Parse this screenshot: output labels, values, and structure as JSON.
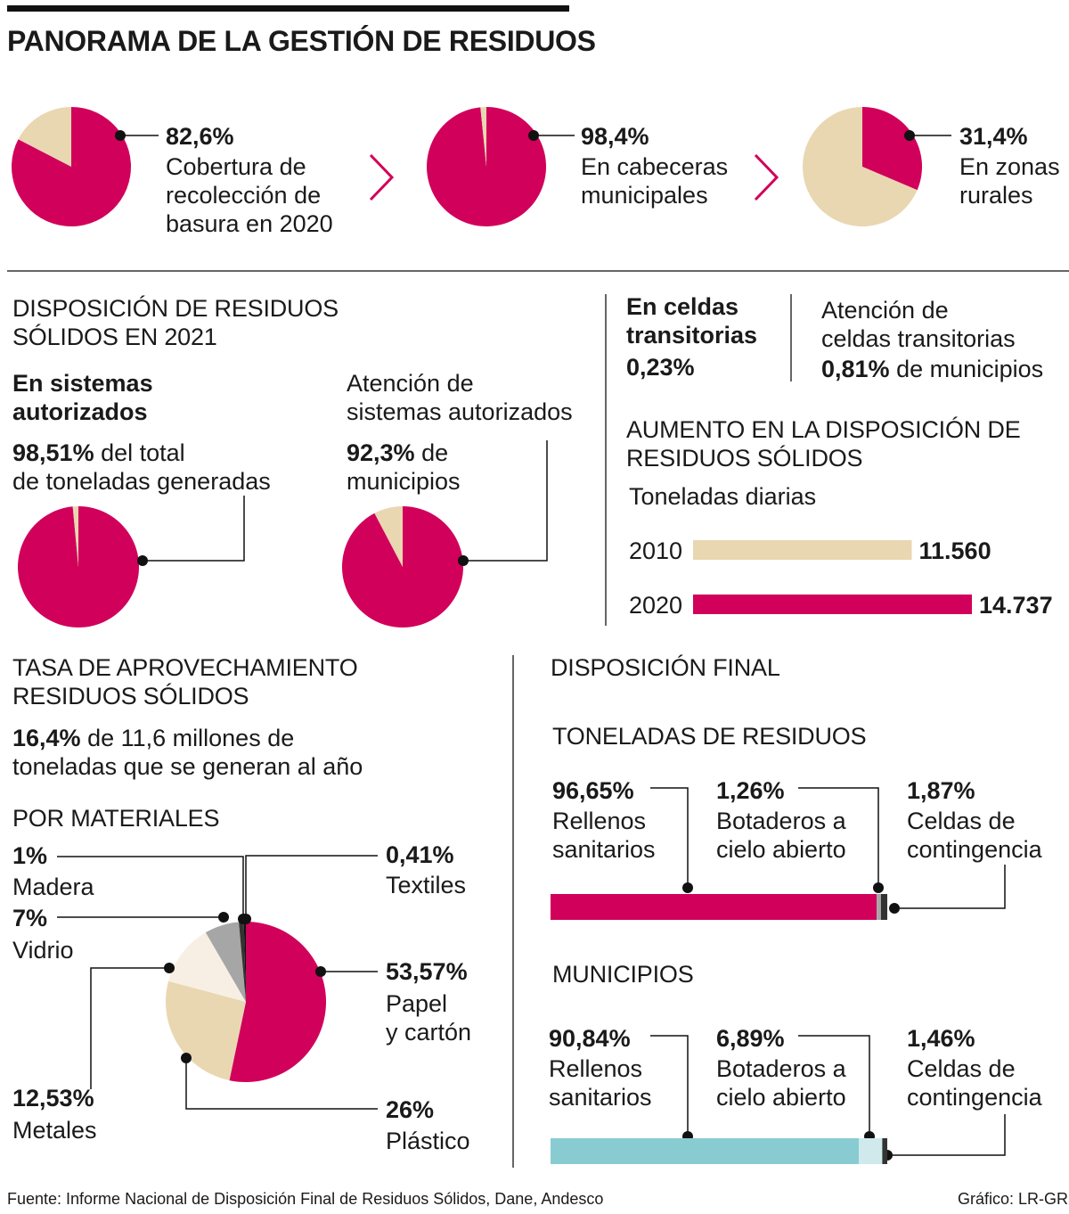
{
  "title": "PANORAMA DE LA GESTIÓN DE RESIDUOS",
  "colors": {
    "magenta": "#d1005a",
    "beige": "#e9d7b1",
    "gray": "#a6a6a6",
    "cream": "#f7efe3",
    "dark": "#333333",
    "teal": "#88ccd2",
    "lightteal": "#cfe9ec"
  },
  "coverage": [
    {
      "value": "82,6%",
      "lines": [
        "Cobertura de",
        "recolección de",
        "basura en 2020"
      ],
      "pct": 82.6
    },
    {
      "value": "98,4%",
      "lines": [
        "En cabeceras",
        "municipales"
      ],
      "pct": 98.4
    },
    {
      "value": "31,4%",
      "lines": [
        "En zonas",
        "rurales"
      ],
      "pct": 31.4
    }
  ],
  "disposicion": {
    "heading": [
      "DISPOSICIÓN DE RESIDUOS",
      "SÓLIDOS EN 2021"
    ],
    "autorizados": {
      "label": [
        "En sistemas",
        "autorizados"
      ],
      "value": "98,51%",
      "rest1": "del total",
      "rest2": "de toneladas generadas",
      "pct": 98.51
    },
    "atencion": {
      "label": [
        "Atención de",
        "sistemas autorizados"
      ],
      "value": "92,3%",
      "rest1": "de",
      "rest2": "municipios",
      "pct": 92.3
    },
    "celdas": {
      "label": [
        "En celdas",
        "transitorias"
      ],
      "value": "0,23%"
    },
    "atencion_celdas": {
      "label": [
        "Atención de",
        "celdas transitorias"
      ],
      "value": "0,81%",
      "rest": "de municipios"
    }
  },
  "aumento": {
    "heading": [
      "AUMENTO EN LA DISPOSICIÓN DE",
      "RESIDUOS SÓLIDOS"
    ],
    "subtitle": "Toneladas diarias"
  },
  "tasa": {
    "heading": [
      "TASA DE APROVECHAMIENTO",
      "RESIDUOS SÓLIDOS"
    ],
    "value": "16,4%",
    "rest1": "de 11,6 millones de",
    "rest2": "toneladas que se generan al año",
    "por_materiales": "POR MATERIALES"
  },
  "final": {
    "heading": "DISPOSICIÓN FINAL",
    "toneladas": {
      "heading": "TONELADAS DE RESIDUOS",
      "items": [
        {
          "value": "96,65%",
          "lines": [
            "Rellenos",
            "sanitarios"
          ]
        },
        {
          "value": "1,26%",
          "lines": [
            "Botaderos a",
            "cielo abierto"
          ]
        },
        {
          "value": "1,87%",
          "lines": [
            "Celdas de",
            "contingencia"
          ]
        }
      ]
    },
    "municipios": {
      "heading": "MUNICIPIOS",
      "items": [
        {
          "value": "90,84%",
          "lines": [
            "Rellenos",
            "sanitarios"
          ]
        },
        {
          "value": "6,89%",
          "lines": [
            "Botaderos a",
            "cielo abierto"
          ]
        },
        {
          "value": "1,46%",
          "lines": [
            "Celdas de",
            "contingencia"
          ]
        }
      ]
    }
  },
  "footer": {
    "source": "Fuente: Informe Nacional de Disposición Final de Residuos Sólidos, Dane, Andesco",
    "credit": "Gráfico: LR-GR"
  },
  "chart_data": [
    {
      "type": "pie",
      "series": [
        {
          "name": "Cobertura de recolección de basura en 2020",
          "values": [
            82.6,
            17.4
          ]
        }
      ]
    },
    {
      "type": "pie",
      "series": [
        {
          "name": "En cabeceras municipales",
          "values": [
            98.4,
            1.6
          ]
        }
      ]
    },
    {
      "type": "pie",
      "series": [
        {
          "name": "En zonas rurales",
          "values": [
            31.4,
            68.6
          ]
        }
      ]
    },
    {
      "type": "pie",
      "series": [
        {
          "name": "En sistemas autorizados",
          "values": [
            98.51,
            1.49
          ]
        }
      ]
    },
    {
      "type": "pie",
      "series": [
        {
          "name": "Atención de sistemas autorizados",
          "values": [
            92.3,
            7.7
          ]
        }
      ]
    },
    {
      "type": "bar",
      "title": "AUMENTO EN LA DISPOSICIÓN DE RESIDUOS SÓLIDOS",
      "subtitle": "Toneladas diarias",
      "categories": [
        "2010",
        "2020"
      ],
      "values": [
        11560,
        14737
      ],
      "labels": [
        "11.560",
        "14.737"
      ]
    },
    {
      "type": "pie",
      "title": "POR MATERIALES",
      "categories": [
        "Papel y cartón",
        "Plástico",
        "Metales",
        "Vidrio",
        "Madera",
        "Textiles"
      ],
      "values": [
        53.57,
        26,
        12.53,
        7,
        1,
        0.41
      ],
      "labels": [
        "53,57%",
        "26%",
        "12,53%",
        "7%",
        "1%",
        "0,41%"
      ]
    },
    {
      "type": "bar",
      "title": "TONELADAS DE RESIDUOS",
      "categories": [
        "Rellenos sanitarios",
        "Botaderos a cielo abierto",
        "Celdas de contingencia"
      ],
      "values": [
        96.65,
        1.26,
        1.87
      ]
    },
    {
      "type": "bar",
      "title": "MUNICIPIOS",
      "categories": [
        "Rellenos sanitarios",
        "Botaderos a cielo abierto",
        "Celdas de contingencia"
      ],
      "values": [
        90.84,
        6.89,
        1.46
      ]
    }
  ]
}
